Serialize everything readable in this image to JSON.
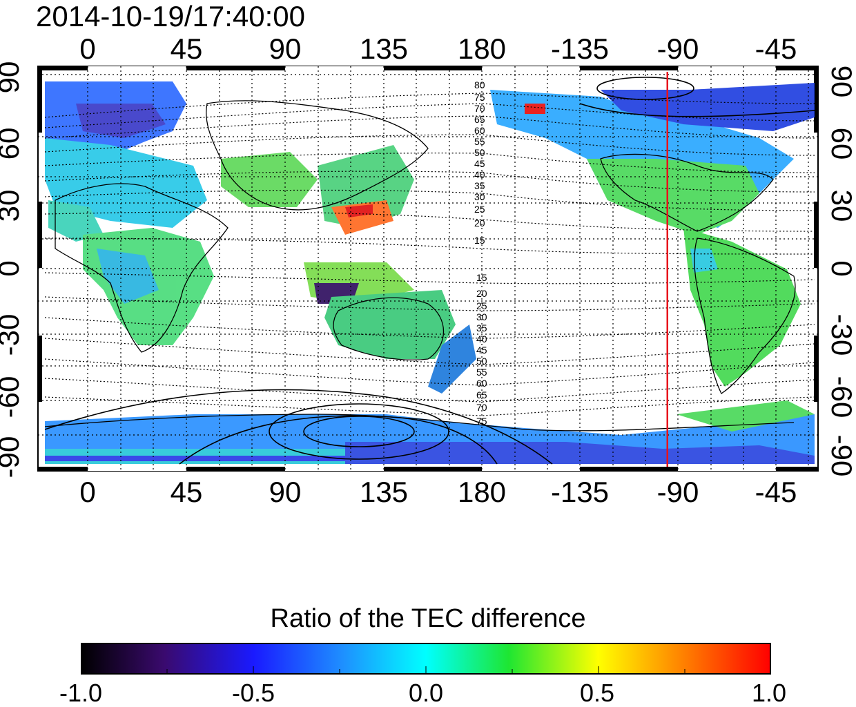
{
  "timestamp": "2014-10-19/17:40:00",
  "top_lon_ticks": [
    "0",
    "45",
    "90",
    "135",
    "180",
    "-135",
    "-90",
    "-45"
  ],
  "bottom_lon_ticks": [
    "0",
    "45",
    "90",
    "135",
    "180",
    "-135",
    "-90",
    "-45"
  ],
  "left_lat_ticks": [
    "90",
    "60",
    "30",
    "0",
    "-30",
    "-60",
    "-90"
  ],
  "right_lat_ticks": [
    "90",
    "60",
    "30",
    "0",
    "-30",
    "-60",
    "-90"
  ],
  "contour_labels_north": [
    "80",
    "75",
    "70",
    "65",
    "60",
    "55",
    "50",
    "45",
    "40",
    "35",
    "30",
    "25",
    "20",
    "15"
  ],
  "contour_labels_south": [
    "15",
    "20",
    "25",
    "30",
    "35",
    "40",
    "45",
    "50",
    "55",
    "60",
    "65",
    "70",
    "75"
  ],
  "terminator_longitude": -95,
  "terminator_color": "#e8141c",
  "colorbar": {
    "title": "Ratio of the TEC difference",
    "ticks": [
      "-1.0",
      "-0.5",
      "0.0",
      "0.5",
      "1.0"
    ],
    "min": -1.0,
    "max": 1.0
  }
}
